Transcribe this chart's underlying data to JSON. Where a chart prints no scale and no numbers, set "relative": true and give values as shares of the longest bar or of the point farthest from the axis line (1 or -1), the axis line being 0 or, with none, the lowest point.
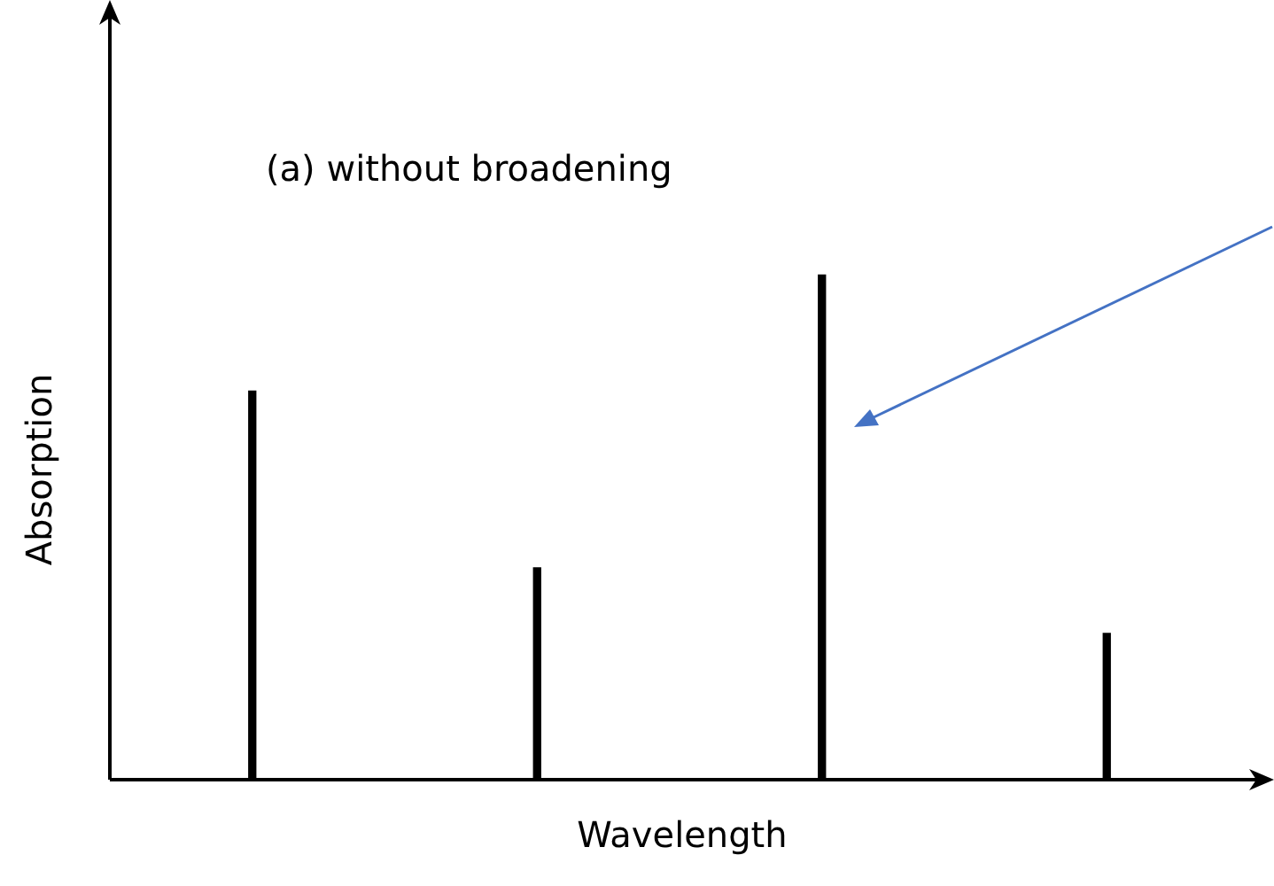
{
  "chart_data": {
    "type": "bar",
    "title": "(a) without broadening",
    "xlabel": "Wavelength",
    "ylabel": "Absorption",
    "relative": true,
    "categories": [
      null,
      null,
      null,
      null
    ],
    "values": [
      0.77,
      0.42,
      1,
      0.29
    ],
    "color": "#000000"
  }
}
